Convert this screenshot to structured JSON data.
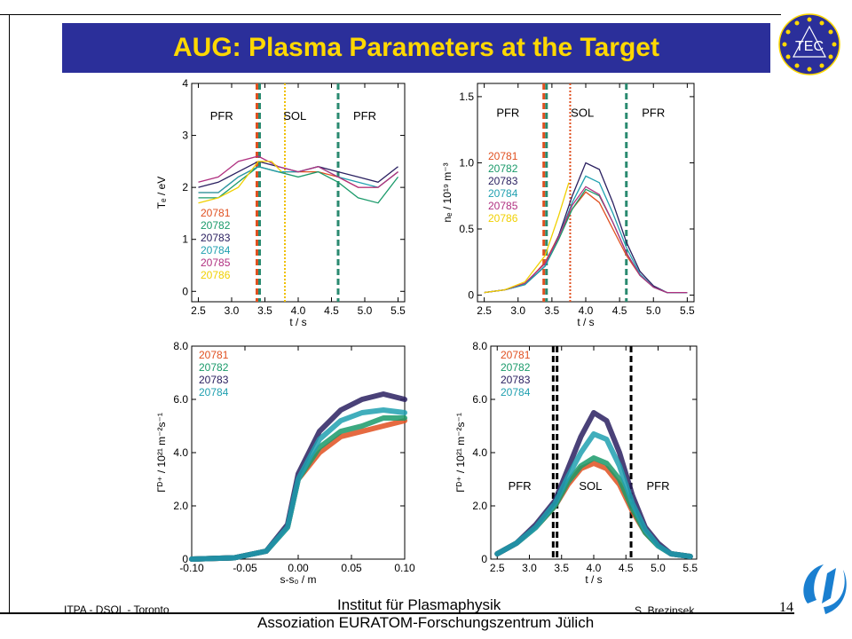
{
  "slide": {
    "title": "AUG: Plasma Parameters at the Target",
    "footer_left": "ITPA - DSOL - Toronto",
    "institute_line1": "Institut für Plasmaphysik",
    "institute_line2": "Assoziation EURATOM-Forschungszentrum Jülich",
    "author": "S. Brezinsek",
    "page_number": "14",
    "logo_text": "TEC"
  },
  "chart_data": [
    {
      "type": "line",
      "xlabel": "t / s",
      "ylabel": "Tₑ / eV",
      "xlim": [
        2.4,
        5.6
      ],
      "ylim": [
        -0.2,
        4
      ],
      "xticks": [
        2.5,
        3.0,
        3.5,
        4.0,
        4.5,
        5.0,
        5.5
      ],
      "xtick_labels": [
        "2.5",
        "3.0",
        "3.5",
        "4.0",
        "4.5",
        "5.0",
        "5.5"
      ],
      "yticks": [
        0,
        1,
        2,
        3,
        4
      ],
      "ytick_labels": [
        "0",
        "1",
        "2",
        "3",
        "4"
      ],
      "region_labels": [
        {
          "text": "PFR",
          "x": 2.85,
          "y": 3.3
        },
        {
          "text": "SOL",
          "x": 3.95,
          "y": 3.3
        },
        {
          "text": "PFR",
          "x": 5.0,
          "y": 3.3
        }
      ],
      "vlines": [
        {
          "x": 3.38,
          "color": "#e05020",
          "style": "dashed"
        },
        {
          "x": 3.42,
          "color": "#2a8a70",
          "style": "dashed"
        },
        {
          "x": 4.6,
          "color": "#2a8a70",
          "style": "dashed"
        },
        {
          "x": 3.8,
          "color": "#f0c000",
          "style": "dotted"
        }
      ],
      "legend_position": "bottom-left",
      "series": [
        {
          "name": "20781",
          "color": "#e05020",
          "x": [
            2.5,
            2.8,
            3.1,
            3.4,
            3.7,
            4.0,
            4.3,
            4.6,
            4.9,
            5.2,
            5.5
          ],
          "y": [
            1.9,
            1.9,
            2.2,
            2.4,
            2.3,
            2.3,
            2.3,
            2.2,
            2.0,
            2.0,
            2.3
          ]
        },
        {
          "name": "20782",
          "color": "#1a9a6a",
          "x": [
            2.5,
            2.8,
            3.1,
            3.4,
            3.7,
            4.0,
            4.3,
            4.6,
            4.9,
            5.2,
            5.5
          ],
          "y": [
            1.8,
            1.8,
            2.1,
            2.4,
            2.3,
            2.2,
            2.3,
            2.1,
            1.8,
            1.7,
            2.2
          ]
        },
        {
          "name": "20783",
          "color": "#2a2060",
          "x": [
            2.5,
            2.8,
            3.1,
            3.4,
            3.7,
            4.0,
            4.3,
            4.6,
            4.9,
            5.2,
            5.5
          ],
          "y": [
            2.0,
            2.1,
            2.3,
            2.5,
            2.4,
            2.3,
            2.4,
            2.3,
            2.2,
            2.1,
            2.4
          ]
        },
        {
          "name": "20784",
          "color": "#20a0b0",
          "x": [
            2.5,
            2.8,
            3.1,
            3.4,
            3.7,
            4.0,
            4.3,
            4.6,
            4.9,
            5.2,
            5.5
          ],
          "y": [
            1.9,
            1.9,
            2.2,
            2.4,
            2.3,
            2.3,
            2.4,
            2.2,
            2.1,
            2.0,
            2.3
          ]
        },
        {
          "name": "20785",
          "color": "#b03080",
          "x": [
            2.5,
            2.8,
            3.1,
            3.4,
            3.7,
            4.0,
            4.3,
            4.6,
            4.9,
            5.2,
            5.5
          ],
          "y": [
            2.1,
            2.2,
            2.5,
            2.6,
            2.4,
            2.3,
            2.4,
            2.2,
            2.0,
            2.0,
            2.3
          ]
        },
        {
          "name": "20786",
          "color": "#f0d000",
          "x": [
            2.5,
            2.8,
            3.1,
            3.4,
            3.6,
            3.75
          ],
          "y": [
            1.7,
            1.8,
            2.0,
            2.5,
            2.5,
            2.3
          ]
        }
      ]
    },
    {
      "type": "line",
      "xlabel": "t / s",
      "ylabel": "nₑ / 10¹⁹ m⁻³",
      "xlim": [
        2.4,
        5.6
      ],
      "ylim": [
        -0.05,
        1.6
      ],
      "xticks": [
        2.5,
        3.0,
        3.5,
        4.0,
        4.5,
        5.0,
        5.5
      ],
      "xtick_labels": [
        "2.5",
        "3.0",
        "3.5",
        "4.0",
        "4.5",
        "5.0",
        "5.5"
      ],
      "yticks": [
        0,
        0.5,
        1.0,
        1.5
      ],
      "ytick_labels": [
        "0",
        "0.5",
        "1.0",
        "1.5"
      ],
      "region_labels": [
        {
          "text": "PFR",
          "x": 2.85,
          "y": 1.35
        },
        {
          "text": "SOL",
          "x": 3.95,
          "y": 1.35
        },
        {
          "text": "PFR",
          "x": 5.0,
          "y": 1.35
        }
      ],
      "vlines": [
        {
          "x": 3.38,
          "color": "#e05020",
          "style": "dashed"
        },
        {
          "x": 3.42,
          "color": "#2a8a70",
          "style": "dashed"
        },
        {
          "x": 4.6,
          "color": "#2a8a70",
          "style": "dashed"
        },
        {
          "x": 3.77,
          "color": "#e05020",
          "style": "dotted"
        }
      ],
      "legend_position": "top-left",
      "series": [
        {
          "name": "20781",
          "color": "#e05020",
          "x": [
            2.5,
            2.8,
            3.1,
            3.4,
            3.6,
            3.8,
            4.0,
            4.2,
            4.4,
            4.6,
            4.8,
            5.0,
            5.2,
            5.5
          ],
          "y": [
            0.02,
            0.04,
            0.08,
            0.25,
            0.45,
            0.65,
            0.78,
            0.7,
            0.5,
            0.3,
            0.15,
            0.06,
            0.02,
            0.02
          ]
        },
        {
          "name": "20782",
          "color": "#1a9a6a",
          "x": [
            2.5,
            2.8,
            3.1,
            3.4,
            3.6,
            3.8,
            4.0,
            4.2,
            4.4,
            4.6,
            4.8,
            5.0,
            5.2,
            5.5
          ],
          "y": [
            0.02,
            0.04,
            0.08,
            0.22,
            0.42,
            0.65,
            0.8,
            0.75,
            0.55,
            0.32,
            0.15,
            0.06,
            0.02,
            0.02
          ]
        },
        {
          "name": "20783",
          "color": "#2a2060",
          "x": [
            2.5,
            2.8,
            3.1,
            3.4,
            3.6,
            3.8,
            4.0,
            4.2,
            4.4,
            4.6,
            4.8,
            5.0,
            5.2,
            5.5
          ],
          "y": [
            0.02,
            0.04,
            0.08,
            0.22,
            0.45,
            0.75,
            1.0,
            0.95,
            0.7,
            0.4,
            0.18,
            0.07,
            0.02,
            0.02
          ]
        },
        {
          "name": "20784",
          "color": "#20a0b0",
          "x": [
            2.5,
            2.8,
            3.1,
            3.4,
            3.6,
            3.8,
            4.0,
            4.2,
            4.4,
            4.6,
            4.8,
            5.0,
            5.2,
            5.5
          ],
          "y": [
            0.02,
            0.04,
            0.08,
            0.22,
            0.44,
            0.7,
            0.9,
            0.85,
            0.62,
            0.36,
            0.16,
            0.06,
            0.02,
            0.02
          ]
        },
        {
          "name": "20785",
          "color": "#b03080",
          "x": [
            2.5,
            2.8,
            3.1,
            3.4,
            3.6,
            3.8,
            4.0,
            4.2,
            4.4,
            4.6,
            4.8,
            5.0,
            5.2,
            5.5
          ],
          "y": [
            0.02,
            0.04,
            0.09,
            0.24,
            0.44,
            0.68,
            0.82,
            0.76,
            0.55,
            0.32,
            0.15,
            0.06,
            0.02,
            0.02
          ]
        },
        {
          "name": "20786",
          "color": "#f0d000",
          "x": [
            2.5,
            2.8,
            3.1,
            3.4,
            3.6,
            3.75
          ],
          "y": [
            0.02,
            0.04,
            0.1,
            0.3,
            0.6,
            0.85
          ]
        }
      ]
    },
    {
      "type": "scatter",
      "xlabel": "s-s₀ / m",
      "ylabel": "Γᴰ⁺ / 10²¹ m⁻²s⁻¹",
      "xlim": [
        -0.1,
        0.1
      ],
      "ylim": [
        0,
        8
      ],
      "xticks": [
        -0.1,
        -0.05,
        0.0,
        0.05,
        0.1
      ],
      "xtick_labels": [
        "-0.10",
        "-0.05",
        "0.00",
        "0.05",
        "0.10"
      ],
      "yticks": [
        0,
        2,
        4,
        6,
        8
      ],
      "ytick_labels": [
        "0",
        "2.0",
        "4.0",
        "6.0",
        "8.0"
      ],
      "region_labels": [],
      "vlines": [],
      "legend_position": "top-left",
      "series": [
        {
          "name": "20781",
          "color": "#e05020",
          "x": [
            -0.1,
            -0.06,
            -0.03,
            -0.01,
            0.0,
            0.02,
            0.04,
            0.06,
            0.08,
            0.1
          ],
          "y": [
            0,
            0.05,
            0.3,
            1.2,
            3.0,
            4.0,
            4.6,
            4.8,
            5.0,
            5.2
          ]
        },
        {
          "name": "20782",
          "color": "#1a9a6a",
          "x": [
            -0.1,
            -0.06,
            -0.03,
            -0.01,
            0.0,
            0.02,
            0.04,
            0.06,
            0.08,
            0.1
          ],
          "y": [
            0,
            0.05,
            0.3,
            1.2,
            3.0,
            4.2,
            4.8,
            5.0,
            5.3,
            5.3
          ]
        },
        {
          "name": "20783",
          "color": "#2a2060",
          "x": [
            -0.1,
            -0.06,
            -0.03,
            -0.01,
            0.0,
            0.02,
            0.04,
            0.06,
            0.08,
            0.1
          ],
          "y": [
            0,
            0.05,
            0.3,
            1.3,
            3.2,
            4.8,
            5.6,
            6.0,
            6.2,
            6.0
          ]
        },
        {
          "name": "20784",
          "color": "#20a0b0",
          "x": [
            -0.1,
            -0.06,
            -0.03,
            -0.01,
            0.0,
            0.02,
            0.04,
            0.06,
            0.08,
            0.1
          ],
          "y": [
            0,
            0.05,
            0.3,
            1.2,
            3.0,
            4.5,
            5.2,
            5.5,
            5.6,
            5.5
          ]
        }
      ]
    },
    {
      "type": "scatter",
      "xlabel": "t / s",
      "ylabel": "Γᴰ⁺ / 10²¹ m⁻²s⁻¹",
      "xlim": [
        2.4,
        5.6
      ],
      "ylim": [
        0,
        8
      ],
      "xticks": [
        2.5,
        3.0,
        3.5,
        4.0,
        4.5,
        5.0,
        5.5
      ],
      "xtick_labels": [
        "2.5",
        "3.0",
        "3.5",
        "4.0",
        "4.5",
        "5.0",
        "5.5"
      ],
      "yticks": [
        0,
        2,
        4,
        6,
        8
      ],
      "ytick_labels": [
        "0",
        "2.0",
        "4.0",
        "6.0",
        "8.0"
      ],
      "region_labels": [
        {
          "text": "PFR",
          "x": 2.85,
          "y": 2.6
        },
        {
          "text": "SOL",
          "x": 3.95,
          "y": 2.6
        },
        {
          "text": "PFR",
          "x": 5.0,
          "y": 2.6
        }
      ],
      "vlines": [
        {
          "x": 3.37,
          "color": "#000000",
          "style": "dashed"
        },
        {
          "x": 3.43,
          "color": "#000000",
          "style": "dashed"
        },
        {
          "x": 4.58,
          "color": "#000000",
          "style": "dashed"
        }
      ],
      "legend_position": "top-left",
      "series": [
        {
          "name": "20781",
          "color": "#e05020",
          "x": [
            2.5,
            2.8,
            3.1,
            3.4,
            3.6,
            3.8,
            4.0,
            4.2,
            4.4,
            4.6,
            4.8,
            5.0,
            5.2,
            5.5
          ],
          "y": [
            0.2,
            0.6,
            1.2,
            2.0,
            2.8,
            3.4,
            3.6,
            3.4,
            2.8,
            1.8,
            1.0,
            0.5,
            0.2,
            0.1
          ]
        },
        {
          "name": "20782",
          "color": "#1a9a6a",
          "x": [
            2.5,
            2.8,
            3.1,
            3.4,
            3.6,
            3.8,
            4.0,
            4.2,
            4.4,
            4.6,
            4.8,
            5.0,
            5.2,
            5.5
          ],
          "y": [
            0.2,
            0.6,
            1.2,
            2.0,
            2.9,
            3.5,
            3.8,
            3.6,
            3.0,
            1.9,
            1.0,
            0.5,
            0.2,
            0.1
          ]
        },
        {
          "name": "20783",
          "color": "#2a2060",
          "x": [
            2.5,
            2.8,
            3.1,
            3.4,
            3.6,
            3.8,
            4.0,
            4.2,
            4.4,
            4.6,
            4.8,
            5.0,
            5.2,
            5.5
          ],
          "y": [
            0.2,
            0.6,
            1.3,
            2.2,
            3.4,
            4.6,
            5.5,
            5.2,
            4.0,
            2.4,
            1.2,
            0.6,
            0.2,
            0.1
          ]
        },
        {
          "name": "20784",
          "color": "#20a0b0",
          "x": [
            2.5,
            2.8,
            3.1,
            3.4,
            3.6,
            3.8,
            4.0,
            4.2,
            4.4,
            4.6,
            4.8,
            5.0,
            5.2,
            5.5
          ],
          "y": [
            0.2,
            0.6,
            1.2,
            2.1,
            3.1,
            4.0,
            4.7,
            4.5,
            3.5,
            2.1,
            1.1,
            0.5,
            0.2,
            0.1
          ]
        }
      ]
    }
  ]
}
